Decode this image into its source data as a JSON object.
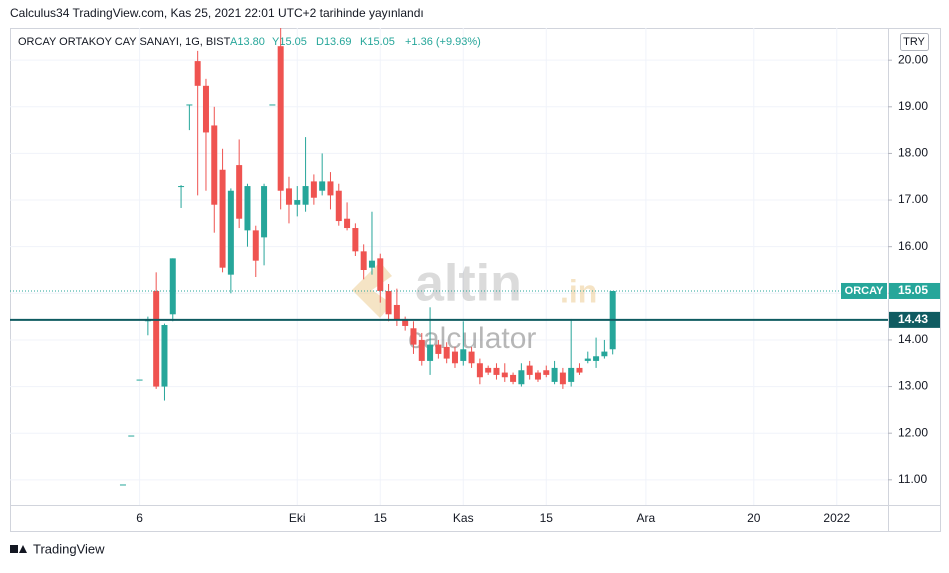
{
  "header": "Calculus34 TradingView.com, Kas 25, 2021 22:01 UTC+2 tarihinde yayınlandı",
  "footer": "TradingView",
  "watermark": {
    "brand": "altin",
    "domain": ".in",
    "sub": "calculator"
  },
  "chart_data": {
    "type": "candlestick",
    "legend": {
      "symbol": "ORCAY ORTAKOY CAY SANAYI, 1G, BIST",
      "open": "A13.80",
      "high": "Y15.05",
      "low": "D13.69",
      "close": "K15.05",
      "change": "+1.36 (+9.93%)"
    },
    "currency": "TRY",
    "up_color": "#26a69a",
    "down_color": "#ef5350",
    "x": [
      0,
      1,
      2,
      3,
      4,
      5,
      6,
      7,
      8,
      9,
      10,
      11,
      12,
      13,
      14,
      15,
      16,
      17,
      18,
      19,
      20,
      21,
      22,
      23,
      24,
      25,
      26,
      27,
      28,
      29,
      30,
      31,
      32,
      33,
      34,
      35,
      36,
      37,
      38,
      39,
      40,
      41,
      42,
      43,
      44,
      45,
      46,
      47,
      48,
      49,
      50,
      51,
      52,
      53,
      54,
      55,
      56,
      57,
      58,
      59
    ],
    "open": [
      10.9,
      11.95,
      13.15,
      14.4,
      15.05,
      13.0,
      14.55,
      17.3,
      19.05,
      19.98,
      19.45,
      18.6,
      17.65,
      15.4,
      17.75,
      16.35,
      16.35,
      16.2,
      19.05,
      20.3,
      17.25,
      16.9,
      16.9,
      17.4,
      17.2,
      17.4,
      17.2,
      16.6,
      16.4,
      15.9,
      15.55,
      15.75,
      15.05,
      14.75,
      14.45,
      14.25,
      14.0,
      13.55,
      13.9,
      13.85,
      13.75,
      13.55,
      13.75,
      13.5,
      13.4,
      13.4,
      13.3,
      13.25,
      13.05,
      13.45,
      13.3,
      13.35,
      13.1,
      13.3,
      13.1,
      13.4,
      13.55,
      13.55,
      13.65,
      13.8
    ],
    "high": [
      10.9,
      11.95,
      13.15,
      14.5,
      15.45,
      14.35,
      15.75,
      17.32,
      19.05,
      20.2,
      19.6,
      19.0,
      18.1,
      17.25,
      18.3,
      17.35,
      16.45,
      17.35,
      19.05,
      20.69,
      17.5,
      17.3,
      18.35,
      17.55,
      18.0,
      17.6,
      17.35,
      16.95,
      16.5,
      16.05,
      16.75,
      15.85,
      15.2,
      15.1,
      14.5,
      14.4,
      14.15,
      14.7,
      14.0,
      13.95,
      13.85,
      14.4,
      13.85,
      13.6,
      13.45,
      13.5,
      13.5,
      13.3,
      13.5,
      13.55,
      13.35,
      13.45,
      13.55,
      13.4,
      14.45,
      13.5,
      13.75,
      14.05,
      14.0,
      15.05
    ],
    "low": [
      10.9,
      11.95,
      13.15,
      14.1,
      12.95,
      12.7,
      14.4,
      16.83,
      18.5,
      17.1,
      17.2,
      16.3,
      15.45,
      15.0,
      16.4,
      16.0,
      15.35,
      15.6,
      19.05,
      16.8,
      16.5,
      16.65,
      16.75,
      16.9,
      17.1,
      16.8,
      16.45,
      16.35,
      15.8,
      15.3,
      15.4,
      14.8,
      14.4,
      14.3,
      14.2,
      13.7,
      13.45,
      13.25,
      13.6,
      13.5,
      13.4,
      13.45,
      13.4,
      13.05,
      13.25,
      13.15,
      13.1,
      13.05,
      13.0,
      13.15,
      13.1,
      13.2,
      13.05,
      12.95,
      13.0,
      13.25,
      13.5,
      13.4,
      13.6,
      13.69
    ],
    "close": [
      10.9,
      11.95,
      13.15,
      14.45,
      13.0,
      14.32,
      15.75,
      17.3,
      19.05,
      19.45,
      18.45,
      16.9,
      15.55,
      17.2,
      16.6,
      17.3,
      15.7,
      17.3,
      19.05,
      17.2,
      16.9,
      17.0,
      17.3,
      17.05,
      17.4,
      17.1,
      16.55,
      16.4,
      15.9,
      15.5,
      15.7,
      15.05,
      14.55,
      14.43,
      14.3,
      13.9,
      13.55,
      13.9,
      13.7,
      13.6,
      13.5,
      13.8,
      13.5,
      13.2,
      13.3,
      13.25,
      13.2,
      13.1,
      13.35,
      13.25,
      13.15,
      13.25,
      13.4,
      13.05,
      13.4,
      13.3,
      13.6,
      13.65,
      13.75,
      15.05
    ],
    "xlim": [
      -13.61,
      92.17
    ],
    "xticks": [
      {
        "value": 2,
        "label": "6"
      },
      {
        "value": 21,
        "label": "Eki"
      },
      {
        "value": 31,
        "label": "15"
      },
      {
        "value": 41,
        "label": "Kas"
      },
      {
        "value": 51,
        "label": "15"
      },
      {
        "value": 63,
        "label": "Ara"
      },
      {
        "value": 76,
        "label": "20"
      },
      {
        "value": 86,
        "label": "2022"
      }
    ],
    "ylim": [
      10.46,
      20.69
    ],
    "yticks": [
      {
        "value": 11,
        "label": "11.00"
      },
      {
        "value": 12,
        "label": "12.00"
      },
      {
        "value": 13,
        "label": "13.00"
      },
      {
        "value": 14,
        "label": "14.00"
      },
      {
        "value": 15,
        "label": "15.00"
      },
      {
        "value": 16,
        "label": "16.00"
      },
      {
        "value": 17,
        "label": "17.00"
      },
      {
        "value": 18,
        "label": "18.00"
      },
      {
        "value": 19,
        "label": "19.00"
      },
      {
        "value": 20,
        "label": "20.00"
      }
    ],
    "grid": true,
    "price_line": {
      "name": "ORCAY",
      "value": 15.05,
      "color": "#26a69a"
    },
    "hline": {
      "value": 14.43,
      "color": "#0f5b61"
    }
  }
}
